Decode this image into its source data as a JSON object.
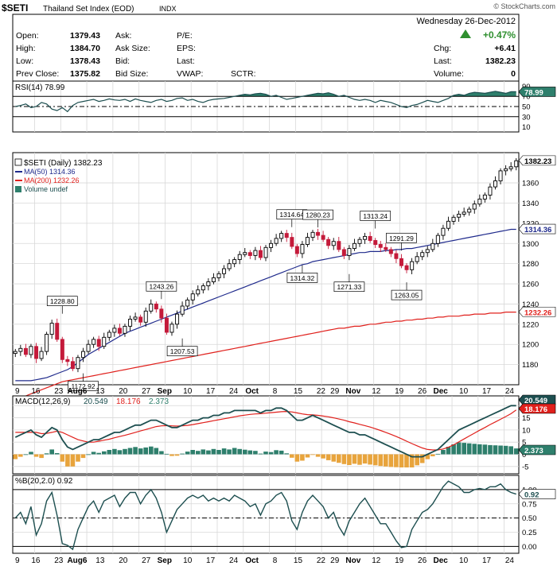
{
  "header": {
    "symbol": "$SETI",
    "name": "Thailand Set Index (EOD)",
    "exchange": "INDX",
    "watermark": "© StockCharts.com",
    "date": "Wednesday  26-Dec-2012",
    "pct_change": "+0.47%",
    "fields": [
      {
        "label": "Open:",
        "value": "1379.43"
      },
      {
        "label": "High:",
        "value": "1384.70"
      },
      {
        "label": "Low:",
        "value": "1378.43"
      },
      {
        "label": "Prev Close:",
        "value": "1375.82"
      }
    ],
    "mid_labels": [
      "Ask:",
      "Ask Size:",
      "Bid:",
      "Bid Size:"
    ],
    "mid2_labels": [
      "P/E:",
      "EPS:",
      "Last:",
      "VWAP:"
    ],
    "sctr_label": "SCTR:",
    "right_fields": [
      {
        "label": "Chg:",
        "value": "+6.41"
      },
      {
        "label": "Last:",
        "value": "1382.23"
      },
      {
        "label": "Volume:",
        "value": "0"
      }
    ]
  },
  "colors": {
    "frame": "#000000",
    "panel_border": "#000000",
    "grid": "#d8d8d8",
    "up_candle": "#000000",
    "down_candle": "#c41a3a",
    "ma50": "#1f2a8c",
    "ma200": "#e0201c",
    "rsi_line": "#1d4f50",
    "rsi_fill": "#2e7f6c",
    "macd_line": "#1d4f50",
    "signal_line": "#e0201c",
    "hist_pos": "#2e7f6c",
    "hist_neg": "#e8a43c",
    "pctb_line": "#1d4f50",
    "green_arrow": "#2f8f2f"
  },
  "chart_data": [
    {
      "type": "line",
      "title": "RSI(14) 78.99",
      "last_label": "78.99",
      "y_ticks": [
        "90",
        "70",
        "50",
        "30",
        "10"
      ],
      "ylim": [
        0,
        100
      ],
      "reference_lines": [
        70,
        50,
        30
      ],
      "values": [
        50,
        52,
        55,
        48,
        50,
        58,
        55,
        45,
        42,
        48,
        40,
        52,
        58,
        60,
        62,
        64,
        60,
        62,
        65,
        63,
        62,
        64,
        60,
        65,
        62,
        60,
        58,
        62,
        64,
        60,
        62,
        66,
        67,
        62,
        64,
        60,
        58,
        62,
        64,
        65,
        66,
        68,
        70,
        72,
        74,
        73,
        75,
        76,
        74,
        70,
        72,
        68,
        64,
        66,
        68,
        70,
        72,
        74,
        76,
        75,
        77,
        74,
        70,
        72,
        68,
        64,
        62,
        64,
        62,
        58,
        62,
        60,
        58,
        54,
        50,
        48,
        52,
        54,
        58,
        62,
        60,
        58,
        62,
        66,
        72,
        74,
        72,
        76,
        78,
        77,
        76,
        78,
        80,
        78,
        76,
        79,
        79
      ]
    },
    {
      "type": "candlestick",
      "title": "$SETI (Daily) 1382.23",
      "last_label": "1382.23",
      "legend": [
        "MA(50) 1314.36",
        "MA(200) 1232.26",
        "Volume undef"
      ],
      "ma50_label": "1314.36",
      "ma200_label": "1232.26",
      "y_ticks": [
        "1360",
        "1340",
        "1320",
        "1300",
        "1280",
        "1260",
        "1240",
        "1220",
        "1200",
        "1180"
      ],
      "ylim": [
        1160,
        1390
      ],
      "x_ticks": [
        "9",
        "16",
        "23",
        "Aug6",
        "13",
        "20",
        "27",
        "Sep",
        "10",
        "17",
        "24",
        "Oct",
        "8",
        "15",
        "22",
        "29",
        "Nov",
        "12",
        "19",
        "26",
        "Dec",
        "10",
        "17",
        "24"
      ],
      "annotations": [
        "1228.80",
        "1172.92",
        "1243.26",
        "1207.53",
        "1314.64",
        "1314.32",
        "1280.23",
        "1271.33",
        "1313.24",
        "1291.29",
        "1263.05"
      ],
      "closes": [
        1193,
        1196,
        1190,
        1198,
        1186,
        1193,
        1210,
        1221,
        1205,
        1185,
        1183,
        1176,
        1187,
        1193,
        1200,
        1205,
        1198,
        1207,
        1212,
        1216,
        1211,
        1218,
        1225,
        1227,
        1222,
        1233,
        1240,
        1235,
        1226,
        1212,
        1220,
        1230,
        1238,
        1244,
        1250,
        1254,
        1258,
        1262,
        1266,
        1270,
        1275,
        1280,
        1284,
        1289,
        1291,
        1288,
        1293,
        1286,
        1296,
        1300,
        1305,
        1310,
        1306,
        1297,
        1290,
        1299,
        1306,
        1311,
        1308,
        1304,
        1298,
        1302,
        1294,
        1288,
        1295,
        1300,
        1304,
        1307,
        1303,
        1299,
        1296,
        1294,
        1290,
        1285,
        1278,
        1274,
        1282,
        1287,
        1291,
        1294,
        1300,
        1308,
        1315,
        1322,
        1326,
        1329,
        1331,
        1334,
        1339,
        1344,
        1348,
        1356,
        1362,
        1372,
        1374,
        1376,
        1382
      ],
      "ma50": [
        1164,
        1164,
        1164,
        1164,
        1165,
        1166,
        1167,
        1169,
        1171,
        1173,
        1175,
        1178,
        1182,
        1186,
        1190,
        1193,
        1196,
        1199,
        1202,
        1205,
        1208,
        1211,
        1213,
        1215,
        1217,
        1219,
        1221,
        1223,
        1225,
        1227,
        1229,
        1231,
        1233,
        1235,
        1237,
        1239,
        1241,
        1243,
        1245,
        1247,
        1249,
        1251,
        1253,
        1255,
        1257,
        1259,
        1261,
        1263,
        1265,
        1267,
        1269,
        1271,
        1273,
        1275,
        1277,
        1279,
        1280,
        1282,
        1283,
        1284,
        1285,
        1286,
        1287,
        1288,
        1289,
        1290,
        1291,
        1291,
        1292,
        1292,
        1292,
        1293,
        1293,
        1294,
        1294,
        1295,
        1295,
        1296,
        1297,
        1298,
        1299,
        1300,
        1301,
        1302,
        1303,
        1304,
        1305,
        1306,
        1307,
        1308,
        1309,
        1310,
        1311,
        1312,
        1313,
        1314,
        1314
      ],
      "ma200": [
        1145,
        1147,
        1149,
        1151,
        1153,
        1155,
        1157,
        1159,
        1161,
        1163,
        1164,
        1165,
        1166,
        1167,
        1168,
        1169,
        1170,
        1171,
        1172,
        1173,
        1174,
        1175,
        1176,
        1177,
        1178,
        1179,
        1180,
        1181,
        1182,
        1183,
        1184,
        1185,
        1186,
        1187,
        1188,
        1189,
        1190,
        1191,
        1192,
        1193,
        1194,
        1195,
        1196,
        1197,
        1198,
        1199,
        1200,
        1201,
        1202,
        1203,
        1204,
        1205,
        1206,
        1207,
        1208,
        1209,
        1210,
        1211,
        1212,
        1213,
        1214,
        1215,
        1216,
        1216,
        1217,
        1218,
        1218,
        1219,
        1220,
        1220,
        1221,
        1222,
        1222,
        1223,
        1223,
        1224,
        1224,
        1225,
        1225,
        1226,
        1226,
        1227,
        1227,
        1228,
        1228,
        1228,
        1229,
        1229,
        1230,
        1230,
        1230,
        1231,
        1231,
        1231,
        1232,
        1232,
        1232
      ]
    },
    {
      "type": "line",
      "title": "MACD(12,26,9) 20.549, 18.176, 2.373",
      "macd_title": "MACD(12,26,9)",
      "macd_value": "20.549",
      "signal_value": "18.176",
      "hist_value": "2.373",
      "labels": [
        "20.549",
        "18.176",
        "2.373"
      ],
      "y_ticks": [
        "20",
        "15",
        "10",
        "5",
        "0",
        "-5"
      ],
      "ylim": [
        -8,
        24
      ],
      "macd": [
        7,
        8,
        9,
        10,
        8,
        7,
        9,
        11,
        10,
        6,
        3,
        2,
        3,
        4,
        5,
        6,
        6,
        7,
        8,
        9,
        9,
        10,
        11,
        12,
        12,
        13,
        14,
        14,
        13,
        12,
        11,
        11,
        12,
        13,
        14,
        14,
        15,
        15,
        16,
        16,
        17,
        17,
        18,
        18,
        18,
        18,
        18,
        17,
        18,
        18,
        19,
        19,
        18,
        16,
        14,
        14,
        15,
        16,
        15,
        14,
        13,
        12,
        11,
        10,
        9,
        9,
        8,
        8,
        7,
        6,
        5,
        4,
        3,
        2,
        1,
        0,
        -1,
        -1,
        -1,
        0,
        1,
        2,
        4,
        6,
        8,
        10,
        11,
        12,
        13,
        14,
        15,
        16,
        17,
        18,
        19,
        20,
        20
      ],
      "signal": [
        9,
        9,
        9,
        9,
        9,
        8.5,
        8.6,
        9,
        9.5,
        9,
        8,
        7,
        6,
        5.5,
        5,
        5,
        5.4,
        5.8,
        6.2,
        6.8,
        7.3,
        7.8,
        8.4,
        9,
        9.6,
        10.2,
        10.8,
        11.4,
        11.7,
        11.8,
        11.7,
        11.6,
        11.7,
        11.9,
        12.2,
        12.6,
        13,
        13.4,
        13.8,
        14.2,
        14.6,
        15,
        15.4,
        15.8,
        16.1,
        16.4,
        16.6,
        16.7,
        16.9,
        17.1,
        17.3,
        17.5,
        17.6,
        17.4,
        17,
        16.6,
        16.3,
        16.2,
        16,
        15.7,
        15.4,
        15,
        14.5,
        14,
        13.4,
        12.9,
        12.3,
        11.8,
        11.2,
        10.5,
        9.8,
        9,
        8.2,
        7.3,
        6.4,
        5.4,
        4.4,
        3.5,
        2.6,
        2,
        1.8,
        1.8,
        2.2,
        2.9,
        3.9,
        5.1,
        6.3,
        7.5,
        8.7,
        9.9,
        11,
        12.2,
        13.3,
        14.4,
        15.5,
        16.7,
        18.2
      ],
      "histogram": [
        -2,
        -1,
        0,
        1,
        -1,
        -1.5,
        0.4,
        2,
        0.5,
        -3,
        -5,
        -5,
        -3,
        -1.5,
        0,
        1,
        0.6,
        1.2,
        1.8,
        2.2,
        1.7,
        2.2,
        2.6,
        3,
        2.4,
        2.8,
        3.2,
        2.6,
        1.3,
        0.2,
        -0.7,
        -0.6,
        0.3,
        1.1,
        1.8,
        1.4,
        2,
        1.6,
        2.2,
        1.8,
        2.4,
        2,
        2.6,
        2.2,
        1.9,
        1.6,
        1.4,
        0.3,
        1.1,
        0.9,
        1.7,
        1.5,
        0.4,
        -1.4,
        -3,
        -2.6,
        -1.3,
        -0.2,
        -1,
        -1.7,
        -2.4,
        -3,
        -3.5,
        -4,
        -4.4,
        -3.9,
        -4.3,
        -3.8,
        -4.2,
        -4.5,
        -4.8,
        -5,
        -5.2,
        -5.3,
        -5.4,
        -5.4,
        -5.4,
        -4.5,
        -3.6,
        -2,
        -0.8,
        0.2,
        1.8,
        3.1,
        4.1,
        4.9,
        4.7,
        4.5,
        4.3,
        4.1,
        4,
        3.8,
        3.7,
        3.6,
        3.5,
        3.3,
        2.4
      ]
    },
    {
      "type": "line",
      "title": "%B(20,2.0) 0.92",
      "last_label": "0.92",
      "y_ticks": [
        "1.00",
        "0.75",
        "0.50",
        "0.25",
        "0.00"
      ],
      "ylim": [
        -0.12,
        1.25
      ],
      "reference_lines": [
        1.0,
        0.5,
        0.0
      ],
      "values": [
        0.5,
        0.6,
        0.4,
        0.7,
        0.2,
        0.4,
        0.8,
        0.95,
        0.55,
        0.05,
        0.02,
        -0.05,
        0.3,
        0.5,
        0.7,
        0.8,
        0.6,
        0.8,
        0.85,
        0.9,
        0.7,
        0.85,
        0.95,
        0.95,
        0.75,
        0.9,
        1.0,
        0.85,
        0.6,
        0.25,
        0.45,
        0.65,
        0.75,
        0.85,
        0.9,
        0.85,
        0.9,
        0.8,
        0.85,
        0.8,
        0.85,
        0.8,
        0.9,
        0.85,
        0.8,
        0.7,
        0.75,
        0.55,
        0.75,
        0.8,
        0.9,
        0.95,
        0.8,
        0.45,
        0.3,
        0.6,
        0.8,
        0.9,
        0.8,
        0.7,
        0.5,
        0.6,
        0.35,
        0.2,
        0.45,
        0.6,
        0.75,
        0.85,
        0.7,
        0.55,
        0.4,
        0.4,
        0.25,
        0.1,
        -0.02,
        0.0,
        0.3,
        0.45,
        0.6,
        0.65,
        0.75,
        0.9,
        1.05,
        1.15,
        1.1,
        1.05,
        0.95,
        0.95,
        1.0,
        1.02,
        1.0,
        1.05,
        1.05,
        1.1,
        1.0,
        0.95,
        0.92
      ]
    }
  ]
}
